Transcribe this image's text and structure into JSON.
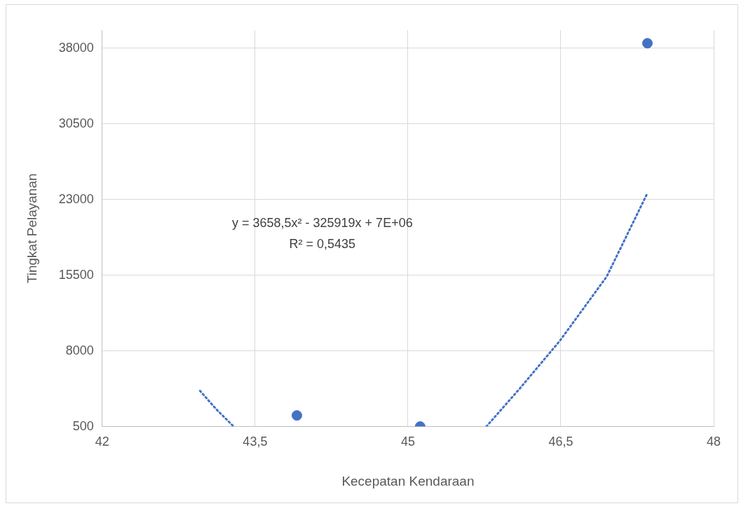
{
  "chart_data": {
    "type": "scatter",
    "xlabel": "Kecepatan Kendaraan",
    "ylabel": "Tingkat Pelayanan",
    "xlim": [
      42,
      48
    ],
    "xticks": [
      42,
      {
        "value": 43.5,
        "label": "43,5"
      },
      45,
      {
        "value": 46.5,
        "label": "46,5"
      },
      48
    ],
    "ylim": [
      500,
      39800
    ],
    "yticks": [
      500,
      8000,
      15500,
      23000,
      30500,
      38000
    ],
    "grid": true,
    "legend": false,
    "marker": "circle",
    "annotations": [
      "y = 3658,5x² - 325919x + 7E+06",
      "R² = 0,5435"
    ],
    "series": [
      {
        "type": "scatter",
        "color": "#4472c4",
        "x": [
          43.91,
          45.12,
          47.35
        ],
        "values": [
          1600,
          500,
          38500
        ]
      },
      {
        "type": "line",
        "color": "#4472c4",
        "line_style": "dotted",
        "marker": "none",
        "x": [
          42.96,
          43.12,
          43.29,
          null,
          45.77,
          46.1,
          46.49,
          46.95,
          47.35
        ],
        "values": [
          4040,
          2200,
          500,
          null,
          500,
          4300,
          8990,
          15360,
          23640
        ]
      }
    ]
  }
}
